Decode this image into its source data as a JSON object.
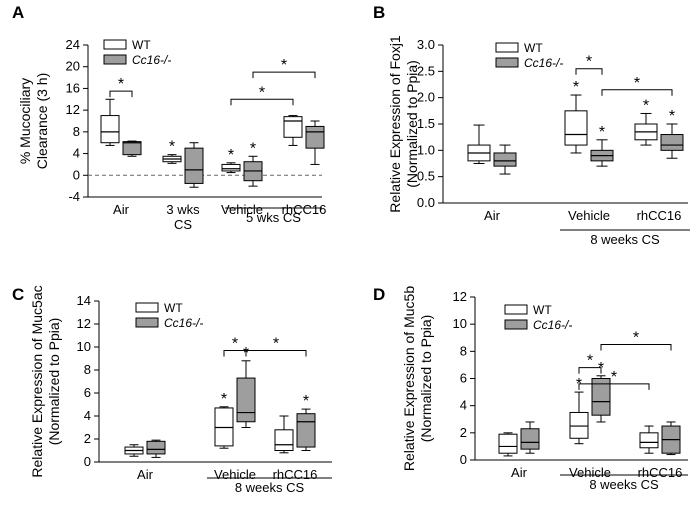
{
  "figure": {
    "background": "#ffffff",
    "wt_fill": "#ffffff",
    "ko_fill": "#9e9e9e",
    "stroke": "#000000",
    "reference_line_color": "#666666"
  },
  "chart_data": [
    {
      "panel": "A",
      "type": "box",
      "ylabel": [
        "% Mucociliary",
        "Clearance (3 h)"
      ],
      "ylim": [
        -4,
        24
      ],
      "yticks": [
        -4,
        0,
        4,
        8,
        12,
        16,
        20,
        24
      ],
      "reference_line": 0,
      "legend": [
        "WT",
        "Cc16-/-"
      ],
      "categories": [
        "Air",
        "3 wks CS",
        "Vehicle",
        "rhCC16"
      ],
      "category_lines": [
        [
          "Air"
        ],
        [
          "3 wks",
          "CS"
        ],
        [
          "Vehicle"
        ],
        [
          "rhCC16"
        ]
      ],
      "group_label": "5 wks CS",
      "series": [
        {
          "name": "WT",
          "boxes": [
            {
              "min": 5.5,
              "q1": 6,
              "median": 8,
              "q3": 11,
              "max": 14
            },
            {
              "min": 2.2,
              "q1": 2.5,
              "median": 3,
              "q3": 3.5,
              "max": 3.8
            },
            {
              "min": 0.5,
              "q1": 0.8,
              "median": 1.2,
              "q3": 2,
              "max": 2.3
            },
            {
              "min": 5.5,
              "q1": 7,
              "median": 10,
              "q3": 10.8,
              "max": 11
            }
          ]
        },
        {
          "name": "Cc16-/-",
          "boxes": [
            {
              "min": 3.5,
              "q1": 3.8,
              "median": 6,
              "q3": 6.2,
              "max": 6.3
            },
            {
              "min": -2.2,
              "q1": -1.5,
              "median": 1,
              "q3": 5,
              "max": 6
            },
            {
              "min": -2,
              "q1": -1,
              "median": 0.8,
              "q3": 2.5,
              "max": 3.5
            },
            {
              "min": 2,
              "q1": 5,
              "median": 8,
              "q3": 9,
              "max": 10
            }
          ]
        }
      ],
      "significance": {
        "stars": [
          {
            "category": 1,
            "series": 0,
            "text": "*"
          },
          {
            "category": 2,
            "series": 0,
            "text": "*"
          },
          {
            "category": 2,
            "series": 1,
            "text": "*"
          }
        ],
        "brackets": [
          {
            "from": [
              0,
              0
            ],
            "to": [
              0,
              1
            ],
            "y": 15.5,
            "text": "*"
          },
          {
            "from": [
              2,
              0
            ],
            "to": [
              3,
              0
            ],
            "y": 14,
            "text": "*"
          },
          {
            "from": [
              2,
              1
            ],
            "to": [
              3,
              1
            ],
            "y": 19,
            "text": "*"
          }
        ]
      }
    },
    {
      "panel": "B",
      "type": "box",
      "ylabel": [
        "Relative Expression of Foxj1",
        "(Normalized to Ppia)"
      ],
      "ylim": [
        0,
        3
      ],
      "yticks": [
        0.0,
        0.5,
        1.0,
        1.5,
        2.0,
        2.5,
        3.0
      ],
      "tick_decimals": 1,
      "legend": [
        "WT",
        "Cc16-/-"
      ],
      "categories": [
        "Air",
        "Vehicle",
        "rhCC16"
      ],
      "group_label": "8 weeks CS",
      "series": [
        {
          "name": "WT",
          "boxes": [
            {
              "min": 0.75,
              "q1": 0.8,
              "median": 0.95,
              "q3": 1.1,
              "max": 1.48
            },
            {
              "min": 0.95,
              "q1": 1.1,
              "median": 1.3,
              "q3": 1.75,
              "max": 2.05
            },
            {
              "min": 1.1,
              "q1": 1.2,
              "median": 1.35,
              "q3": 1.5,
              "max": 1.7
            }
          ]
        },
        {
          "name": "Cc16-/-",
          "boxes": [
            {
              "min": 0.55,
              "q1": 0.7,
              "median": 0.8,
              "q3": 0.95,
              "max": 1.1
            },
            {
              "min": 0.7,
              "q1": 0.8,
              "median": 0.9,
              "q3": 1.0,
              "max": 1.2
            },
            {
              "min": 0.85,
              "q1": 1.0,
              "median": 1.1,
              "q3": 1.3,
              "max": 1.5
            }
          ]
        }
      ],
      "significance": {
        "stars": [
          {
            "category": 1,
            "series": 0,
            "text": "*"
          },
          {
            "category": 1,
            "series": 1,
            "text": "*"
          },
          {
            "category": 2,
            "series": 0,
            "text": "*"
          },
          {
            "category": 2,
            "series": 1,
            "text": "*"
          }
        ],
        "brackets": [
          {
            "from": [
              1,
              0
            ],
            "to": [
              1,
              1
            ],
            "y": 2.55,
            "text": "*"
          },
          {
            "from": [
              1,
              1
            ],
            "to": [
              2,
              1
            ],
            "y": 2.15,
            "text": "*"
          }
        ]
      }
    },
    {
      "panel": "C",
      "type": "box",
      "ylabel": [
        "Relative Expression of Muc5ac",
        "(Normalized to Ppia)"
      ],
      "ylim": [
        0,
        14
      ],
      "yticks": [
        0,
        2,
        4,
        6,
        8,
        10,
        12,
        14
      ],
      "legend": [
        "WT",
        "Cc16-/-"
      ],
      "categories": [
        "Air",
        "Vehicle",
        "rhCC16"
      ],
      "group_label": "8 weeks CS",
      "series": [
        {
          "name": "WT",
          "boxes": [
            {
              "min": 0.5,
              "q1": 0.7,
              "median": 1.0,
              "q3": 1.3,
              "max": 1.5
            },
            {
              "min": 1.2,
              "q1": 1.4,
              "median": 3.0,
              "q3": 4.7,
              "max": 4.8
            },
            {
              "min": 0.8,
              "q1": 1.0,
              "median": 1.5,
              "q3": 2.8,
              "max": 4.0
            }
          ]
        },
        {
          "name": "Cc16-/-",
          "boxes": [
            {
              "min": 0.4,
              "q1": 0.7,
              "median": 1.1,
              "q3": 1.8,
              "max": 1.9
            },
            {
              "min": 3.0,
              "q1": 3.5,
              "median": 4.3,
              "q3": 7.3,
              "max": 8.8
            },
            {
              "min": 1.0,
              "q1": 1.3,
              "median": 3.5,
              "q3": 4.2,
              "max": 4.6
            }
          ]
        }
      ],
      "significance": {
        "stars": [
          {
            "category": 1,
            "series": 0,
            "text": "*"
          },
          {
            "category": 1,
            "series": 1,
            "text": "*"
          },
          {
            "category": 2,
            "series": 1,
            "text": "*"
          }
        ],
        "brackets": [
          {
            "from": [
              1,
              0
            ],
            "to": [
              1,
              1
            ],
            "y": 9.7,
            "text": "*"
          },
          {
            "from": [
              1,
              1
            ],
            "to": [
              2,
              1
            ],
            "y": 9.7,
            "text": "*"
          }
        ]
      }
    },
    {
      "panel": "D",
      "type": "box",
      "ylabel": [
        "Relative Expression of Muc5b",
        "(Normalized to Ppia)"
      ],
      "ylim": [
        0,
        12
      ],
      "yticks": [
        0,
        2,
        4,
        6,
        8,
        10,
        12
      ],
      "legend": [
        "WT",
        "Cc16-/-"
      ],
      "categories": [
        "Air",
        "Vehicle",
        "rhCC16"
      ],
      "group_label": "8 weeks CS",
      "series": [
        {
          "name": "WT",
          "boxes": [
            {
              "min": 0.3,
              "q1": 0.5,
              "median": 1.0,
              "q3": 1.9,
              "max": 2.0
            },
            {
              "min": 1.2,
              "q1": 1.6,
              "median": 2.5,
              "q3": 3.5,
              "max": 5.0
            },
            {
              "min": 0.5,
              "q1": 0.9,
              "median": 1.3,
              "q3": 2.0,
              "max": 2.5
            }
          ]
        },
        {
          "name": "Cc16-/-",
          "boxes": [
            {
              "min": 0.5,
              "q1": 0.8,
              "median": 1.3,
              "q3": 2.3,
              "max": 2.8
            },
            {
              "min": 2.8,
              "q1": 3.3,
              "median": 4.3,
              "q3": 6.0,
              "max": 6.2
            },
            {
              "min": 0.4,
              "q1": 0.5,
              "median": 1.5,
              "q3": 2.5,
              "max": 2.8
            }
          ]
        }
      ],
      "significance": {
        "stars": [
          {
            "category": 1,
            "series": 0,
            "text": "*"
          },
          {
            "category": 1,
            "series": 1,
            "text": "*"
          }
        ],
        "brackets": [
          {
            "from": [
              1,
              0
            ],
            "to": [
              1,
              1
            ],
            "y": 6.8,
            "text": "*"
          },
          {
            "from": [
              1,
              0
            ],
            "to": [
              2,
              0
            ],
            "y": 5.6,
            "text": "*"
          },
          {
            "from": [
              1,
              1
            ],
            "to": [
              2,
              1
            ],
            "y": 8.5,
            "text": "*"
          }
        ]
      }
    }
  ]
}
